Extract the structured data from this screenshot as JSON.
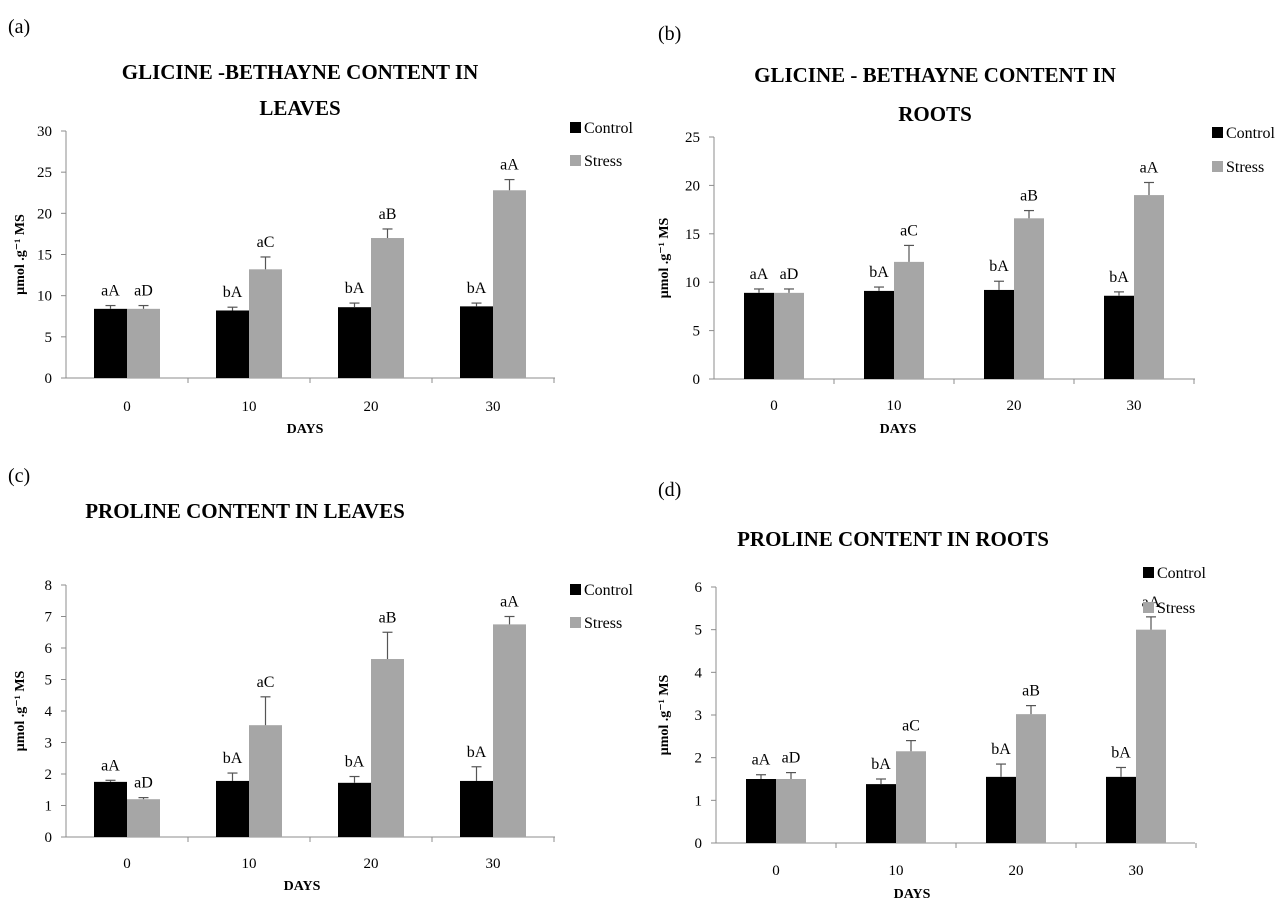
{
  "colors": {
    "control": "#000000",
    "stress": "#a6a6a6",
    "axis": "#8c8c8c",
    "errorbar": "#555555"
  },
  "chart_data": [
    {
      "panel": "(a)",
      "type": "bar",
      "title_lines": [
        "GLICINE -BETHAYNE CONTENT IN",
        "LEAVES"
      ],
      "xlabel": "DAYS",
      "ylabel": "µmol .g⁻¹ MS",
      "categories": [
        "0",
        "10",
        "20",
        "30"
      ],
      "ylim": [
        0,
        30
      ],
      "yticks": [
        0,
        5,
        10,
        15,
        20,
        25,
        30
      ],
      "series": [
        {
          "name": "Control",
          "color": "#000000",
          "values": [
            8.4,
            8.2,
            8.6,
            8.7
          ],
          "errors": [
            0.4,
            0.4,
            0.5,
            0.4
          ],
          "labels": [
            "aA",
            "bA",
            "bA",
            "bA"
          ]
        },
        {
          "name": "Stress",
          "color": "#a6a6a6",
          "values": [
            8.4,
            13.2,
            17.0,
            22.8
          ],
          "errors": [
            0.4,
            1.5,
            1.1,
            1.3
          ],
          "labels": [
            "aD",
            "aC",
            "aB",
            "aA"
          ]
        }
      ],
      "legend": "top-right"
    },
    {
      "panel": "(b)",
      "type": "bar",
      "title_lines": [
        "GLICINE - BETHAYNE CONTENT IN",
        "ROOTS"
      ],
      "xlabel": "DAYS",
      "ylabel": "µmol .g⁻¹ MS",
      "categories": [
        "0",
        "10",
        "20",
        "30"
      ],
      "ylim": [
        0,
        25
      ],
      "yticks": [
        0,
        5,
        10,
        15,
        20,
        25
      ],
      "series": [
        {
          "name": "Control",
          "color": "#000000",
          "values": [
            8.9,
            9.1,
            9.2,
            8.6
          ],
          "errors": [
            0.4,
            0.4,
            0.9,
            0.4
          ],
          "labels": [
            "aA",
            "bA",
            "bA",
            "bA"
          ]
        },
        {
          "name": "Stress",
          "color": "#a6a6a6",
          "values": [
            8.9,
            12.1,
            16.6,
            19.0
          ],
          "errors": [
            0.4,
            1.7,
            0.8,
            1.3
          ],
          "labels": [
            "aD",
            "aC",
            "aB",
            "aA"
          ]
        }
      ],
      "legend": "top-right"
    },
    {
      "panel": "(c)",
      "type": "bar",
      "title_lines": [
        "PROLINE CONTENT IN LEAVES"
      ],
      "xlabel": "DAYS",
      "ylabel": "µmol .g⁻¹ MS",
      "categories": [
        "0",
        "10",
        "20",
        "30"
      ],
      "ylim": [
        0,
        8
      ],
      "yticks": [
        0,
        1,
        2,
        3,
        4,
        5,
        6,
        7,
        8
      ],
      "series": [
        {
          "name": "Control",
          "color": "#000000",
          "values": [
            1.75,
            1.78,
            1.72,
            1.78
          ],
          "errors": [
            0.05,
            0.25,
            0.2,
            0.45
          ],
          "labels": [
            "aA",
            "bA",
            "bA",
            "bA"
          ]
        },
        {
          "name": "Stress",
          "color": "#a6a6a6",
          "values": [
            1.2,
            3.55,
            5.65,
            6.75
          ],
          "errors": [
            0.05,
            0.9,
            0.85,
            0.25
          ],
          "labels": [
            "aD",
            "aC",
            "aB",
            "aA"
          ]
        }
      ],
      "legend": "top-right"
    },
    {
      "panel": "(d)",
      "type": "bar",
      "title_lines": [
        "PROLINE CONTENT IN ROOTS"
      ],
      "xlabel": "DAYS",
      "ylabel": "µmol .g⁻¹ MS",
      "categories": [
        "0",
        "10",
        "20",
        "30"
      ],
      "ylim": [
        0,
        6
      ],
      "yticks": [
        0,
        1,
        2,
        3,
        4,
        5,
        6
      ],
      "series": [
        {
          "name": "Control",
          "color": "#000000",
          "values": [
            1.5,
            1.38,
            1.55,
            1.55
          ],
          "errors": [
            0.1,
            0.12,
            0.3,
            0.22
          ],
          "labels": [
            "aA",
            "bA",
            "bA",
            "bA"
          ]
        },
        {
          "name": "Stress",
          "color": "#a6a6a6",
          "values": [
            1.5,
            2.15,
            3.02,
            5.0
          ],
          "errors": [
            0.15,
            0.25,
            0.2,
            0.3
          ],
          "labels": [
            "aD",
            "aC",
            "aB",
            "aA"
          ]
        }
      ],
      "legend": "top-right"
    }
  ]
}
